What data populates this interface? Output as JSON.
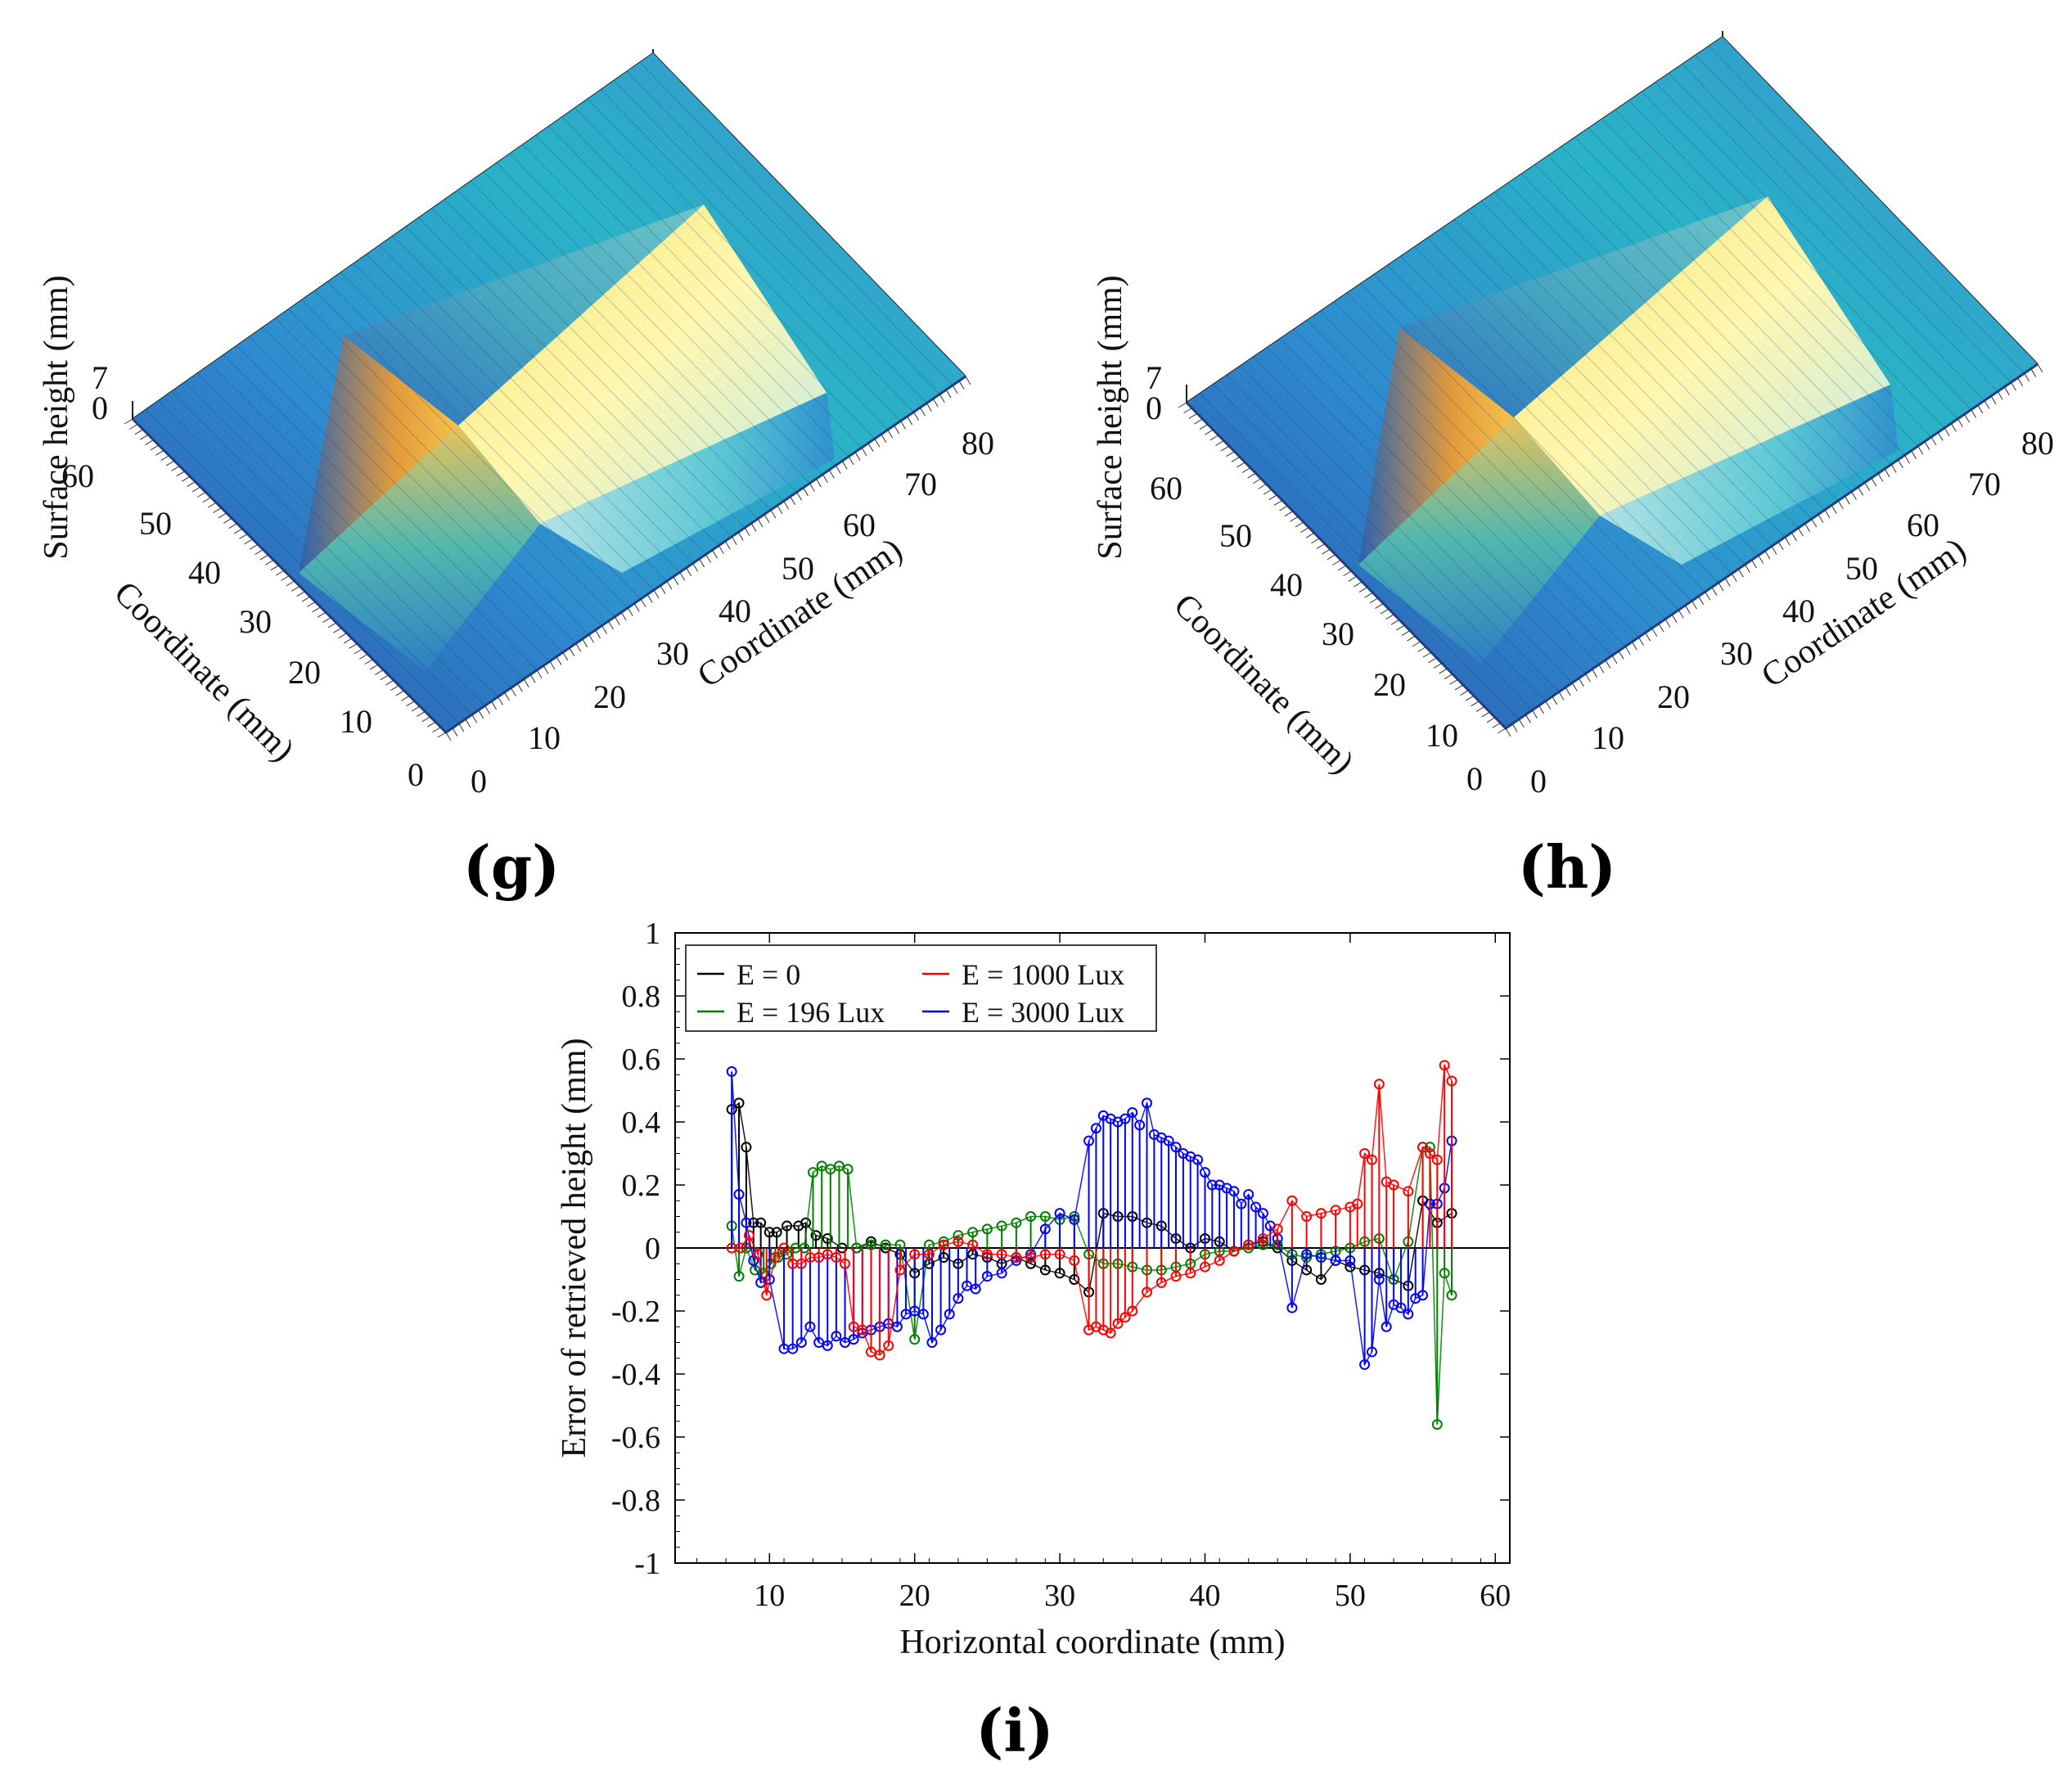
{
  "panels": {
    "g": {
      "label": "(g)",
      "z_axis_label": "Surface height (mm)",
      "z_ticks": [
        "0",
        "7"
      ],
      "y_axis_label": "Coordinate (mm)",
      "y_ticks": [
        "0",
        "10",
        "20",
        "30",
        "40",
        "50",
        "60"
      ],
      "x_axis_label": "Coordinate (mm)",
      "x_ticks": [
        "0",
        "10",
        "20",
        "30",
        "40",
        "50",
        "60",
        "70",
        "80"
      ]
    },
    "h": {
      "label": "(h)",
      "z_axis_label": "Surface height (mm)",
      "z_ticks": [
        "0",
        "7"
      ],
      "y_axis_label": "Coordinate (mm)",
      "y_ticks": [
        "0",
        "10",
        "20",
        "30",
        "40",
        "50",
        "60"
      ],
      "x_axis_label": "Coordinate (mm)",
      "x_ticks": [
        "0",
        "10",
        "20",
        "30",
        "40",
        "50",
        "60",
        "70",
        "80"
      ]
    },
    "i": {
      "label": "(i)"
    }
  },
  "colors": {
    "black": "#000000",
    "green": "#007f00",
    "red": "#ff0000",
    "blue": "#0000ff",
    "surface_low": "#1f5fb4",
    "surface_high": "#fff6a0"
  },
  "chart_data": [
    {
      "type": "surface3d",
      "panel": "g",
      "zlabel": "Surface height (mm)",
      "xlabel": "Coordinate (mm)",
      "ylabel": "Coordinate (mm)",
      "xlim": [
        0,
        85
      ],
      "ylim": [
        0,
        65
      ],
      "zlim": [
        0,
        7
      ]
    },
    {
      "type": "surface3d",
      "panel": "h",
      "zlabel": "Surface height (mm)",
      "xlabel": "Coordinate (mm)",
      "ylabel": "Coordinate (mm)",
      "xlim": [
        0,
        85
      ],
      "ylim": [
        0,
        65
      ],
      "zlim": [
        0,
        7
      ]
    },
    {
      "type": "stem",
      "panel": "i",
      "xlabel": "Horizontal coordinate (mm)",
      "ylabel": "Error of retrieved height (mm)",
      "xlim": [
        3.5,
        61
      ],
      "ylim": [
        -1,
        1
      ],
      "xticks": [
        10,
        20,
        30,
        40,
        50,
        60
      ],
      "yticks": [
        -1,
        -0.8,
        -0.6,
        -0.4,
        -0.2,
        0,
        0.2,
        0.4,
        0.6,
        0.8,
        1
      ],
      "ytick_labels": [
        "-1",
        "-0.8",
        "-0.6",
        "-0.4",
        "-0.2",
        "0",
        "0.2",
        "0.4",
        "0.6",
        "0.8",
        "1"
      ],
      "legend_placement": "top-left",
      "series": [
        {
          "name": "E = 0",
          "color": "#000000",
          "x": [
            7.4,
            7.9,
            8.4,
            8.9,
            9.4,
            10.0,
            10.5,
            11.2,
            12.0,
            12.5,
            13.2,
            14.0,
            15.0,
            16.0,
            17.0,
            18.0,
            19.0,
            20.0,
            21.0,
            22.0,
            23.0,
            24.0,
            25.0,
            26.0,
            27.0,
            28.0,
            29.0,
            30.0,
            31.0,
            32.0,
            33.0,
            34.0,
            35.0,
            36.0,
            37.0,
            38.0,
            39.0,
            40.0,
            41.0,
            42.0,
            43.0,
            44.0,
            45.0,
            46.0,
            47.0,
            48.0,
            49.0,
            50.0,
            51.0,
            52.0,
            53.0,
            54.0,
            55.0,
            56.0,
            57.0
          ],
          "y": [
            0.44,
            0.46,
            0.32,
            0.08,
            0.08,
            0.05,
            0.05,
            0.07,
            0.07,
            0.08,
            0.04,
            0.03,
            0.0,
            0.0,
            0.02,
            0.0,
            -0.02,
            -0.08,
            -0.05,
            -0.03,
            -0.05,
            -0.02,
            -0.03,
            -0.05,
            -0.03,
            -0.05,
            -0.07,
            -0.08,
            -0.1,
            -0.14,
            0.11,
            0.1,
            0.1,
            0.08,
            0.07,
            0.03,
            0.0,
            0.03,
            0.02,
            -0.01,
            0.01,
            0.02,
            0.0,
            -0.04,
            -0.07,
            -0.1,
            -0.04,
            -0.06,
            -0.07,
            -0.08,
            -0.1,
            -0.12,
            0.15,
            0.08,
            0.11
          ]
        },
        {
          "name": "E = 196 Lux",
          "color": "#007f00",
          "x": [
            7.4,
            7.9,
            8.4,
            9.0,
            9.6,
            10.1,
            10.6,
            11.2,
            11.8,
            12.4,
            13.0,
            13.6,
            14.2,
            14.8,
            15.4,
            16.0,
            17.0,
            18.0,
            19.0,
            20.0,
            21.0,
            22.0,
            23.0,
            24.0,
            25.0,
            26.0,
            27.0,
            28.0,
            29.0,
            30.0,
            31.0,
            32.0,
            33.0,
            34.0,
            35.0,
            36.0,
            37.0,
            38.0,
            39.0,
            40.0,
            41.0,
            42.0,
            43.0,
            44.0,
            45.0,
            46.0,
            47.0,
            48.0,
            49.0,
            50.0,
            51.0,
            52.0,
            53.0,
            54.0,
            55.0,
            55.5,
            56.0,
            56.5,
            57.0
          ],
          "y": [
            0.07,
            -0.09,
            0.0,
            -0.07,
            -0.08,
            -0.05,
            -0.03,
            -0.02,
            0.0,
            0.0,
            0.24,
            0.26,
            0.25,
            0.26,
            0.25,
            0.0,
            0.01,
            0.01,
            0.01,
            -0.29,
            0.01,
            0.02,
            0.04,
            0.05,
            0.06,
            0.07,
            0.08,
            0.1,
            0.1,
            0.09,
            0.1,
            -0.02,
            -0.05,
            -0.05,
            -0.06,
            -0.07,
            -0.07,
            -0.06,
            -0.05,
            -0.02,
            -0.01,
            -0.01,
            0.0,
            0.01,
            0.01,
            -0.02,
            -0.03,
            -0.02,
            -0.01,
            0.0,
            0.02,
            0.03,
            -0.1,
            0.02,
            0.32,
            0.32,
            -0.56,
            -0.08,
            -0.15
          ]
        },
        {
          "name": "E = 1000 Lux",
          "color": "#ff0000",
          "x": [
            7.4,
            8.0,
            8.6,
            9.2,
            9.8,
            10.4,
            11.0,
            11.6,
            12.2,
            12.8,
            13.4,
            14.0,
            14.6,
            15.2,
            15.8,
            16.4,
            17.0,
            17.6,
            18.2,
            19.0,
            20.0,
            21.0,
            22.0,
            23.0,
            24.0,
            25.0,
            26.0,
            27.0,
            28.0,
            29.0,
            30.0,
            31.0,
            32.0,
            32.5,
            33.0,
            33.5,
            34.0,
            34.5,
            35.0,
            36.0,
            37.0,
            38.0,
            39.0,
            40.0,
            41.0,
            42.0,
            43.0,
            44.0,
            45.0,
            46.0,
            47.0,
            48.0,
            49.0,
            50.0,
            50.5,
            51.0,
            51.5,
            52.0,
            52.5,
            53.0,
            54.0,
            55.0,
            55.5,
            56.0,
            56.5,
            57.0
          ],
          "y": [
            0.0,
            0.0,
            0.04,
            -0.02,
            -0.15,
            -0.03,
            0.0,
            -0.05,
            -0.05,
            -0.03,
            -0.03,
            -0.02,
            -0.03,
            -0.05,
            -0.25,
            -0.26,
            -0.33,
            -0.34,
            -0.31,
            -0.07,
            -0.02,
            -0.02,
            0.01,
            0.02,
            0.01,
            -0.02,
            -0.02,
            -0.03,
            -0.03,
            -0.02,
            -0.02,
            -0.04,
            -0.26,
            -0.25,
            -0.26,
            -0.27,
            -0.24,
            -0.22,
            -0.2,
            -0.14,
            -0.11,
            -0.09,
            -0.08,
            -0.06,
            -0.04,
            -0.01,
            0.01,
            0.03,
            0.06,
            0.15,
            0.1,
            0.11,
            0.12,
            0.13,
            0.14,
            0.3,
            0.28,
            0.52,
            0.21,
            0.2,
            0.18,
            0.32,
            0.3,
            0.28,
            0.58,
            0.53
          ]
        },
        {
          "name": "E = 3000 Lux",
          "color": "#0000ff",
          "x": [
            7.4,
            7.9,
            8.4,
            8.9,
            9.4,
            10.0,
            11.0,
            11.6,
            12.2,
            12.8,
            13.4,
            14.0,
            14.6,
            15.2,
            15.8,
            16.4,
            17.0,
            17.6,
            18.2,
            18.8,
            19.4,
            20.0,
            20.6,
            21.2,
            21.8,
            22.4,
            23.0,
            23.6,
            24.2,
            25.0,
            26.0,
            27.0,
            28.0,
            29.0,
            30.0,
            31.0,
            32.0,
            32.5,
            33.0,
            33.5,
            34.0,
            34.5,
            35.0,
            35.5,
            36.0,
            36.5,
            37.0,
            37.5,
            38.0,
            38.5,
            39.0,
            39.5,
            40.0,
            40.5,
            41.0,
            41.5,
            42.0,
            42.5,
            43.0,
            43.5,
            44.0,
            44.5,
            45.0,
            46.0,
            47.0,
            48.0,
            49.0,
            50.0,
            51.0,
            51.5,
            52.0,
            52.5,
            53.0,
            53.5,
            54.0,
            54.5,
            55.0,
            55.5,
            56.0,
            56.5,
            57.0
          ],
          "y": [
            0.56,
            0.17,
            0.08,
            -0.04,
            -0.11,
            -0.1,
            -0.32,
            -0.32,
            -0.3,
            -0.25,
            -0.3,
            -0.31,
            -0.28,
            -0.3,
            -0.29,
            -0.27,
            -0.26,
            -0.25,
            -0.24,
            -0.25,
            -0.21,
            -0.2,
            -0.21,
            -0.3,
            -0.26,
            -0.21,
            -0.16,
            -0.12,
            -0.13,
            -0.09,
            -0.08,
            -0.04,
            -0.02,
            0.06,
            0.11,
            0.09,
            0.34,
            0.38,
            0.42,
            0.41,
            0.4,
            0.41,
            0.43,
            0.39,
            0.46,
            0.36,
            0.35,
            0.34,
            0.32,
            0.3,
            0.29,
            0.28,
            0.24,
            0.2,
            0.2,
            0.19,
            0.18,
            0.14,
            0.17,
            0.13,
            0.11,
            0.07,
            0.03,
            -0.19,
            -0.02,
            -0.03,
            -0.04,
            -0.04,
            -0.37,
            -0.33,
            -0.1,
            -0.25,
            -0.18,
            -0.19,
            -0.21,
            -0.16,
            -0.15,
            0.14,
            0.14,
            0.19,
            0.34
          ]
        }
      ]
    }
  ]
}
